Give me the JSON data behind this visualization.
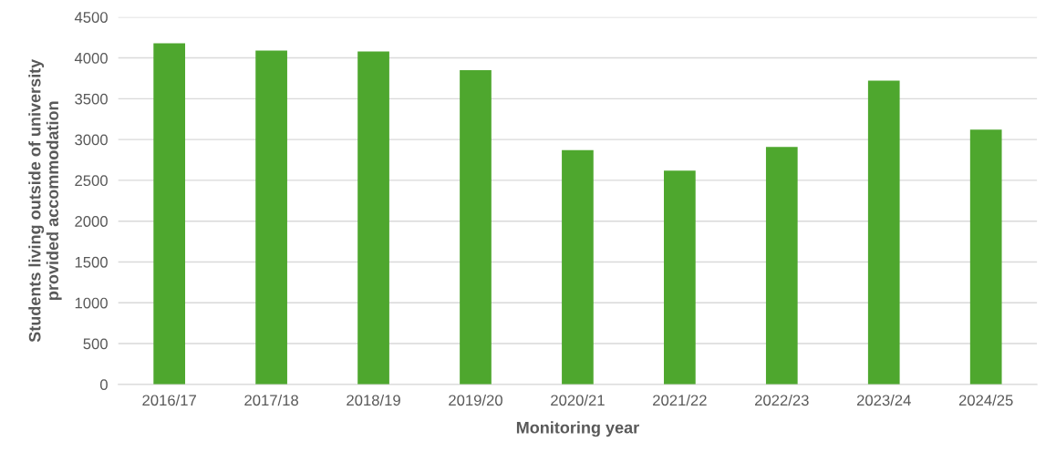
{
  "chart_data": {
    "type": "bar",
    "xlabel": "Monitoring year",
    "ylabel": "Students living outside of university\nprovided accommodation",
    "categories": [
      "2016/17",
      "2017/18",
      "2018/19",
      "2019/20",
      "2020/21",
      "2021/22",
      "2022/23",
      "2023/24",
      "2024/25"
    ],
    "values": [
      4180,
      4090,
      4080,
      3850,
      2870,
      2620,
      2910,
      3720,
      3120
    ],
    "color": "#4ea72e",
    "ylim": [
      0,
      4500
    ],
    "yticks": [
      0,
      500,
      1000,
      1500,
      2000,
      2500,
      3000,
      3500,
      4000,
      4500
    ],
    "grid": "y",
    "legend": false
  }
}
